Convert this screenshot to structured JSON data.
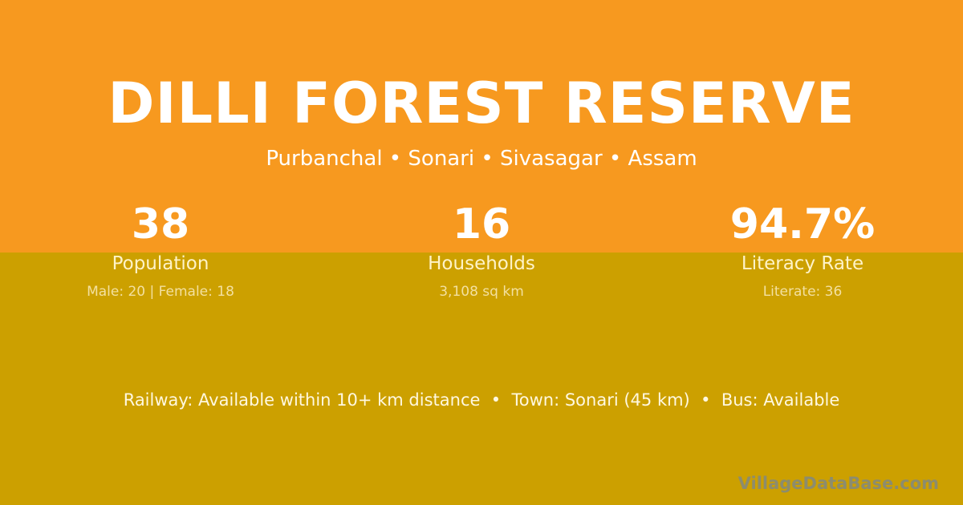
{
  "colors": {
    "top_background": "#F7991F",
    "bottom_background": "#CCA000"
  },
  "title": "DILLI FOREST RESERVE",
  "location": "Purbanchal • Sonari • Sivasagar • Assam",
  "stats": [
    {
      "value": "38",
      "label": "Population",
      "detail": "Male: 20 | Female: 18"
    },
    {
      "value": "16",
      "label": "Households",
      "detail": "3,108 sq km"
    },
    {
      "value": "94.7%",
      "label": "Literacy Rate",
      "detail": "Literate: 36"
    }
  ],
  "info": "Railway: Available within 10+ km distance  •  Town: Sonari (45 km)  •  Bus: Available",
  "brand": "VillageDataBase.com"
}
